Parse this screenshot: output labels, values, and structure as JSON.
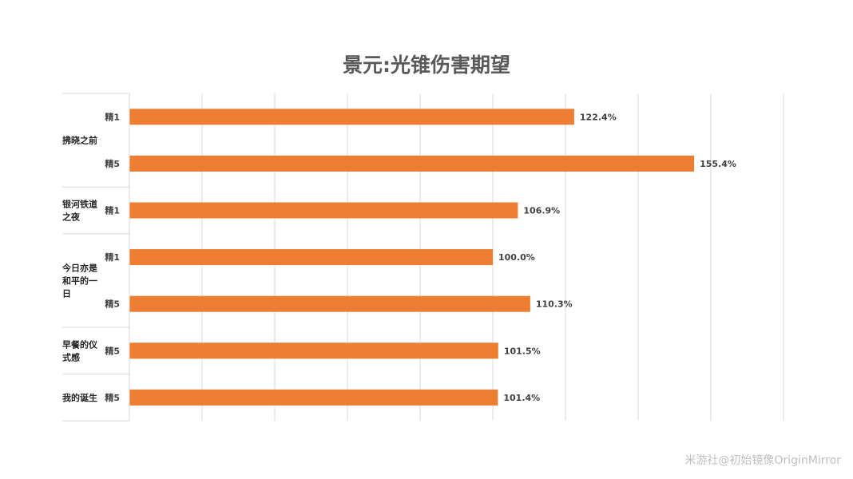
{
  "title": "景元:光锥伤害期望",
  "watermark": "米游社@初始镜像OriginMirror",
  "chart_data": {
    "type": "bar",
    "orientation": "horizontal",
    "title": "景元:光锥伤害期望",
    "xlabel": "",
    "ylabel": "",
    "xlim": [
      0,
      180
    ],
    "grid": true,
    "bar_color": "#ED7D31",
    "value_suffix": "%",
    "groups": [
      {
        "label_lines": [
          "拂晓之前"
        ],
        "bars": [
          {
            "sub": "精1",
            "value": 122.4
          },
          {
            "sub": "精5",
            "value": 155.4
          }
        ]
      },
      {
        "label_lines": [
          "银河铁道",
          "之夜"
        ],
        "bars": [
          {
            "sub": "精1",
            "value": 106.9
          }
        ]
      },
      {
        "label_lines": [
          "今日亦是",
          "和平的一",
          "日"
        ],
        "bars": [
          {
            "sub": "精1",
            "value": 100.0
          },
          {
            "sub": "精5",
            "value": 110.3
          }
        ]
      },
      {
        "label_lines": [
          "早餐的仪",
          "式感"
        ],
        "bars": [
          {
            "sub": "精5",
            "value": 101.5
          }
        ]
      },
      {
        "label_lines": [
          "我的诞生"
        ],
        "bars": [
          {
            "sub": "精5",
            "value": 101.4
          }
        ]
      }
    ]
  }
}
